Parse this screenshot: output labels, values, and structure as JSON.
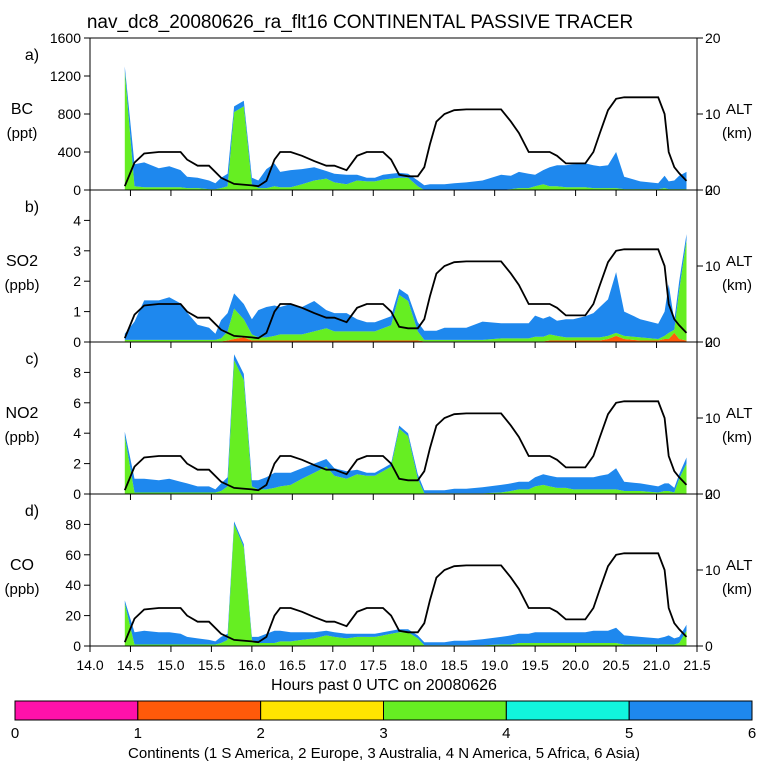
{
  "title": "nav_dc8_20080626_ra_flt16 CONTINENTAL PASSIVE TRACER",
  "chart_data": {
    "type": "area",
    "xlabel": "Hours past 0 UTC on 20080626",
    "xlim": [
      14.0,
      21.5
    ],
    "xticks": [
      "14.0",
      "14.5",
      "15.0",
      "15.5",
      "16.0",
      "16.5",
      "17.0",
      "17.5",
      "18.0",
      "18.5",
      "19.0",
      "19.5",
      "20.0",
      "20.5",
      "21.0",
      "21.5"
    ],
    "altitude": {
      "label": "ALT",
      "unit": "(km)",
      "ylim": [
        0,
        20
      ],
      "ticks": [
        "0",
        "10",
        "20"
      ],
      "x": [
        14.43,
        14.55,
        14.67,
        14.85,
        14.98,
        15.12,
        15.2,
        15.33,
        15.47,
        15.62,
        15.78,
        16.0,
        16.08,
        16.18,
        16.28,
        16.35,
        16.48,
        16.62,
        16.77,
        16.92,
        17.02,
        17.17,
        17.3,
        17.42,
        17.52,
        17.62,
        17.72,
        17.82,
        17.93,
        18.05,
        18.13,
        18.2,
        18.28,
        18.38,
        18.5,
        18.65,
        18.85,
        19.08,
        19.2,
        19.3,
        19.42,
        19.5,
        19.6,
        19.68,
        19.77,
        19.88,
        19.97,
        20.12,
        20.22,
        20.3,
        20.4,
        20.5,
        20.6,
        20.8,
        21.02,
        21.1,
        21.15,
        21.22,
        21.28,
        21.37
      ],
      "values": [
        0.5,
        3.6,
        4.8,
        5.0,
        5.0,
        5.0,
        4.0,
        3.2,
        3.2,
        1.6,
        0.8,
        0.6,
        0.5,
        1.2,
        4.0,
        5.0,
        5.0,
        4.5,
        3.8,
        3.2,
        3.2,
        2.6,
        4.5,
        5.0,
        5.0,
        5.0,
        4.0,
        2.0,
        1.8,
        1.8,
        3.0,
        6.0,
        9.0,
        10.0,
        10.5,
        10.6,
        10.6,
        10.6,
        9.0,
        7.5,
        5.0,
        5.0,
        5.0,
        5.0,
        4.5,
        3.5,
        3.5,
        3.5,
        5.0,
        7.5,
        10.5,
        12.0,
        12.2,
        12.2,
        12.2,
        10.0,
        5.0,
        3.0,
        2.2,
        1.2
      ]
    },
    "colorbar": {
      "label": "Continents (1 S America, 2 Europe, 3 Australia, 4 N America, 5 Africa, 6 Asia)",
      "ticks": [
        "0",
        "1",
        "2",
        "3",
        "4",
        "5",
        "6"
      ],
      "colors": [
        "#ff11aa",
        "#ff5a0a",
        "#ffe400",
        "#66ee22",
        "#11f5dd",
        "#1e88ee"
      ]
    },
    "panels": [
      {
        "id": "a",
        "letter": "a)",
        "species": "BC",
        "unit": "(ppt)",
        "ylim": [
          0,
          1600
        ],
        "yticks": [
          "0",
          "400",
          "800",
          "1200",
          "1600"
        ],
        "x": [
          14.43,
          14.55,
          14.67,
          14.85,
          14.98,
          15.12,
          15.2,
          15.33,
          15.47,
          15.55,
          15.62,
          15.7,
          15.78,
          15.9,
          16.0,
          16.08,
          16.18,
          16.28,
          16.35,
          16.48,
          16.62,
          16.77,
          16.92,
          17.02,
          17.17,
          17.3,
          17.42,
          17.52,
          17.62,
          17.72,
          17.82,
          17.93,
          18.05,
          18.13,
          18.2,
          18.28,
          18.38,
          18.5,
          18.65,
          18.85,
          19.08,
          19.2,
          19.3,
          19.42,
          19.5,
          19.6,
          19.68,
          19.77,
          19.88,
          19.97,
          20.12,
          20.22,
          20.3,
          20.4,
          20.5,
          20.6,
          20.8,
          21.02,
          21.1,
          21.15,
          21.22,
          21.28,
          21.37
        ],
        "series": [
          {
            "name": "Australia",
            "color": "#66ee22",
            "values": [
              1250,
              40,
              30,
              30,
              30,
              30,
              20,
              20,
              10,
              10,
              20,
              40,
              820,
              880,
              60,
              20,
              20,
              40,
              30,
              30,
              60,
              100,
              120,
              80,
              60,
              100,
              90,
              90,
              110,
              120,
              130,
              130,
              40,
              0,
              0,
              0,
              0,
              0,
              0,
              0,
              0,
              10,
              20,
              20,
              40,
              60,
              40,
              40,
              30,
              30,
              30,
              20,
              20,
              20,
              20,
              10,
              10,
              10,
              20,
              10,
              10,
              10,
              10
            ]
          },
          {
            "name": "Asia",
            "color": "#1e88ee",
            "values": [
              50,
              230,
              260,
              200,
              220,
              180,
              120,
              110,
              90,
              60,
              110,
              130,
              60,
              60,
              70,
              80,
              200,
              240,
              160,
              180,
              160,
              140,
              80,
              90,
              100,
              60,
              40,
              40,
              50,
              50,
              50,
              40,
              60,
              50,
              60,
              60,
              60,
              70,
              80,
              100,
              160,
              140,
              170,
              150,
              120,
              150,
              200,
              220,
              230,
              240,
              250,
              240,
              230,
              240,
              380,
              130,
              80,
              60,
              130,
              80,
              90,
              140,
              180
            ]
          }
        ]
      },
      {
        "id": "b",
        "letter": "b)",
        "species": "SO2",
        "unit": "(ppb)",
        "ylim": [
          0,
          5
        ],
        "yticks": [
          "0",
          "1",
          "2",
          "3",
          "4"
        ],
        "x": [
          14.43,
          14.55,
          14.67,
          14.85,
          14.98,
          15.12,
          15.2,
          15.33,
          15.47,
          15.55,
          15.62,
          15.7,
          15.78,
          15.9,
          16.0,
          16.08,
          16.18,
          16.28,
          16.35,
          16.48,
          16.62,
          16.77,
          16.92,
          17.02,
          17.17,
          17.3,
          17.42,
          17.52,
          17.62,
          17.72,
          17.82,
          17.93,
          18.05,
          18.13,
          18.2,
          18.28,
          18.38,
          18.5,
          18.65,
          18.85,
          19.08,
          19.2,
          19.3,
          19.42,
          19.5,
          19.6,
          19.68,
          19.77,
          19.88,
          19.97,
          20.12,
          20.22,
          20.3,
          20.4,
          20.5,
          20.6,
          20.8,
          21.02,
          21.1,
          21.15,
          21.22,
          21.28,
          21.37
        ],
        "series": [
          {
            "name": "Europe",
            "color": "#ff5a0a",
            "values": [
              0.02,
              0.02,
              0.02,
              0.02,
              0.02,
              0.02,
              0.02,
              0.02,
              0.02,
              0.02,
              0.02,
              0.05,
              0.1,
              0.15,
              0.05,
              0.05,
              0.05,
              0.05,
              0.05,
              0.05,
              0.05,
              0.05,
              0.05,
              0.05,
              0.05,
              0.05,
              0.05,
              0.05,
              0.05,
              0.05,
              0.05,
              0.05,
              0.05,
              0.02,
              0.02,
              0.02,
              0.02,
              0.02,
              0.02,
              0.02,
              0.02,
              0.02,
              0.02,
              0.02,
              0.02,
              0.02,
              0.05,
              0.05,
              0.05,
              0.05,
              0.05,
              0.05,
              0.05,
              0.1,
              0.2,
              0.1,
              0.05,
              0.05,
              0.1,
              0.1,
              0.3,
              0.1,
              0.05
            ]
          },
          {
            "name": "Australia",
            "color": "#66ee22",
            "values": [
              0.05,
              0.05,
              0.05,
              0.05,
              0.05,
              0.05,
              0.05,
              0.05,
              0.05,
              0.05,
              0.1,
              0.3,
              1.0,
              0.6,
              0.2,
              0.1,
              0.1,
              0.15,
              0.2,
              0.2,
              0.2,
              0.3,
              0.4,
              0.3,
              0.3,
              0.3,
              0.3,
              0.3,
              0.4,
              0.5,
              1.5,
              1.3,
              0.3,
              0.05,
              0.05,
              0.05,
              0.05,
              0.05,
              0.05,
              0.05,
              0.1,
              0.1,
              0.1,
              0.1,
              0.15,
              0.15,
              0.2,
              0.15,
              0.1,
              0.1,
              0.1,
              0.1,
              0.1,
              0.1,
              0.1,
              0.1,
              0.1,
              0.05,
              0.1,
              0.2,
              0.1,
              1.6,
              3.3
            ]
          },
          {
            "name": "Asia",
            "color": "#1e88ee",
            "values": [
              0.2,
              0.6,
              1.3,
              1.3,
              1.4,
              1.2,
              0.9,
              0.5,
              0.4,
              0.2,
              0.6,
              0.6,
              0.5,
              0.5,
              0.5,
              0.9,
              1.0,
              1.0,
              0.9,
              1.0,
              0.9,
              1.0,
              0.6,
              0.6,
              0.6,
              0.4,
              0.3,
              0.3,
              0.3,
              0.3,
              0.2,
              0.2,
              0.3,
              0.3,
              0.3,
              0.3,
              0.4,
              0.4,
              0.4,
              0.6,
              0.5,
              0.5,
              0.5,
              0.5,
              0.7,
              0.6,
              0.6,
              0.5,
              0.6,
              0.6,
              0.7,
              0.8,
              1.0,
              1.2,
              2.0,
              0.8,
              0.6,
              0.5,
              0.8,
              1.6,
              0.3,
              0.3,
              0.2
            ]
          }
        ]
      },
      {
        "id": "c",
        "letter": "c)",
        "species": "NO2",
        "unit": "(ppb)",
        "ylim": [
          0,
          10
        ],
        "yticks": [
          "0",
          "2",
          "4",
          "6",
          "8"
        ],
        "x": [
          14.43,
          14.55,
          14.67,
          14.85,
          14.98,
          15.12,
          15.2,
          15.33,
          15.47,
          15.55,
          15.62,
          15.7,
          15.78,
          15.9,
          16.0,
          16.08,
          16.18,
          16.28,
          16.35,
          16.48,
          16.62,
          16.77,
          16.92,
          17.02,
          17.17,
          17.3,
          17.42,
          17.52,
          17.62,
          17.72,
          17.82,
          17.93,
          18.05,
          18.13,
          18.2,
          18.28,
          18.38,
          18.5,
          18.65,
          18.85,
          19.08,
          19.2,
          19.3,
          19.42,
          19.5,
          19.6,
          19.68,
          19.77,
          19.88,
          19.97,
          20.12,
          20.22,
          20.3,
          20.4,
          20.5,
          20.6,
          20.8,
          21.02,
          21.1,
          21.15,
          21.22,
          21.28,
          21.37
        ],
        "series": [
          {
            "name": "Australia",
            "color": "#66ee22",
            "values": [
              3.8,
              0.1,
              0.1,
              0.1,
              0.1,
              0.1,
              0.1,
              0.1,
              0.1,
              0.1,
              0.2,
              0.5,
              8.8,
              7.5,
              0.5,
              0.3,
              0.3,
              0.4,
              0.5,
              0.6,
              1.0,
              1.4,
              1.8,
              1.2,
              1.0,
              1.3,
              1.2,
              1.2,
              1.5,
              1.8,
              4.3,
              3.8,
              1.0,
              0.05,
              0.05,
              0.05,
              0.05,
              0.05,
              0.05,
              0.05,
              0.1,
              0.2,
              0.3,
              0.3,
              0.5,
              0.6,
              0.5,
              0.4,
              0.4,
              0.3,
              0.3,
              0.3,
              0.3,
              0.3,
              0.3,
              0.2,
              0.2,
              0.1,
              0.2,
              0.2,
              0.1,
              1.0,
              2.0
            ]
          },
          {
            "name": "Asia",
            "color": "#1e88ee",
            "values": [
              0.3,
              0.9,
              0.9,
              0.8,
              0.9,
              0.7,
              0.6,
              0.4,
              0.4,
              0.2,
              0.5,
              0.6,
              0.4,
              0.4,
              0.4,
              0.6,
              0.8,
              1.0,
              0.9,
              0.8,
              0.7,
              0.6,
              0.5,
              0.5,
              0.5,
              0.3,
              0.2,
              0.2,
              0.2,
              0.2,
              0.2,
              0.2,
              0.3,
              0.2,
              0.2,
              0.2,
              0.2,
              0.3,
              0.3,
              0.4,
              0.5,
              0.5,
              0.5,
              0.5,
              0.6,
              0.7,
              0.7,
              0.7,
              0.7,
              0.8,
              0.8,
              0.8,
              0.9,
              1.0,
              1.4,
              0.6,
              0.5,
              0.4,
              0.5,
              0.5,
              0.3,
              0.3,
              0.4
            ]
          }
        ]
      },
      {
        "id": "d",
        "letter": "d)",
        "species": "CO",
        "unit": "(ppb)",
        "ylim": [
          0,
          100
        ],
        "yticks": [
          "0",
          "20",
          "40",
          "60",
          "80"
        ],
        "x": [
          14.43,
          14.55,
          14.67,
          14.85,
          14.98,
          15.12,
          15.2,
          15.33,
          15.47,
          15.55,
          15.62,
          15.7,
          15.78,
          15.9,
          16.0,
          16.08,
          16.18,
          16.28,
          16.35,
          16.48,
          16.62,
          16.77,
          16.92,
          17.02,
          17.17,
          17.3,
          17.42,
          17.52,
          17.62,
          17.72,
          17.82,
          17.93,
          18.05,
          18.13,
          18.2,
          18.28,
          18.38,
          18.5,
          18.65,
          18.85,
          19.08,
          19.2,
          19.3,
          19.42,
          19.5,
          19.6,
          19.68,
          19.77,
          19.88,
          19.97,
          20.12,
          20.22,
          20.3,
          20.4,
          20.5,
          20.6,
          20.8,
          21.02,
          21.1,
          21.15,
          21.22,
          21.28,
          21.37
        ],
        "series": [
          {
            "name": "Australia",
            "color": "#66ee22",
            "values": [
              28,
              1,
              1,
              1,
              1,
              1,
              1,
              1,
              1,
              1,
              2,
              4,
              80,
              65,
              4,
              2,
              2,
              2,
              3,
              3,
              4,
              5,
              7,
              6,
              5,
              6,
              6,
              6,
              7,
              8,
              9,
              9,
              5,
              0.5,
              0.5,
              0.5,
              0.5,
              0.5,
              0.5,
              0.5,
              1,
              1,
              2,
              2,
              2,
              2,
              2,
              2,
              2,
              2,
              2,
              2,
              2,
              2,
              2,
              1,
              1,
              1,
              1,
              1,
              1,
              2,
              10
            ]
          },
          {
            "name": "Asia",
            "color": "#1e88ee",
            "values": [
              2,
              8,
              9,
              8,
              8,
              7,
              5,
              4,
              3,
              2,
              4,
              4,
              2,
              2,
              2,
              4,
              6,
              8,
              7,
              6,
              5,
              4,
              3,
              3,
              3,
              2,
              2,
              2,
              2,
              2,
              2,
              2,
              2,
              2,
              2,
              2,
              2,
              3,
              3,
              4,
              5,
              6,
              6,
              6,
              7,
              7,
              7,
              7,
              7,
              7,
              7,
              8,
              8,
              8,
              10,
              6,
              5,
              4,
              5,
              6,
              4,
              4,
              4
            ]
          }
        ]
      }
    ]
  }
}
